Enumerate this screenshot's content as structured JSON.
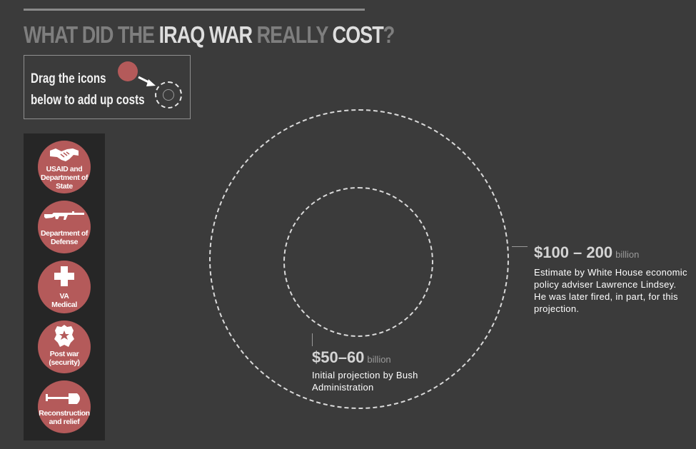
{
  "title": {
    "part1": "WHAT DID THE ",
    "part2": "IRAQ WAR",
    "part3": " REALLY ",
    "part4": "COST",
    "part5": "?"
  },
  "instructions": {
    "line1": "Drag the icons",
    "line2": "below to add up costs"
  },
  "icons": [
    {
      "icon": "handshake-icon",
      "line1": "USAID and",
      "line2": "Department of",
      "line3": "State"
    },
    {
      "icon": "rifle-icon",
      "line1": "Department of",
      "line2": "Defense"
    },
    {
      "icon": "medical-cross-icon",
      "line1": "VA",
      "line2": "Medical"
    },
    {
      "icon": "police-badge-icon",
      "line1": "Post war",
      "line2": "(security)"
    },
    {
      "icon": "shovel-icon",
      "line1": "Reconstruction",
      "line2": "and relief"
    }
  ],
  "estimates": {
    "large": {
      "amount": "$100 – 200",
      "unit": "billion",
      "description": "Estimate by White House economic policy adviser Lawrence Lindsey. He was later fired, in part,  for this projection."
    },
    "small": {
      "amount": "$50–60",
      "unit": "billion",
      "description": "Initial projection by Bush Administration"
    }
  },
  "colors": {
    "background": "#3b3b3b",
    "panel": "#262626",
    "accent": "#b45a5a"
  }
}
